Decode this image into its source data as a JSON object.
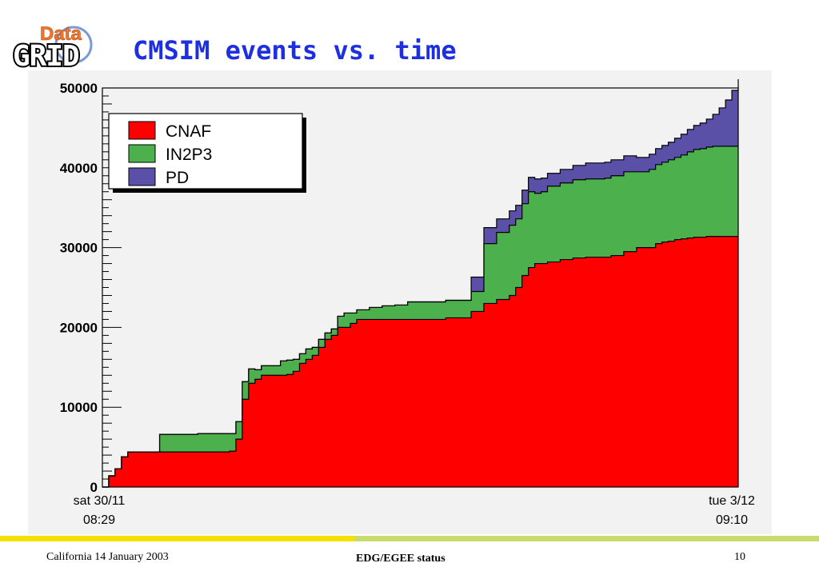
{
  "slide": {
    "title": "CMSIM events vs. time",
    "logo_top": "Data",
    "logo_bottom": "GRID"
  },
  "footer": {
    "left": "California 14 January 2003",
    "center": "EDG/EGEE status",
    "page_number": "10"
  },
  "colors": {
    "CNAF": "#ff0000",
    "IN2P3": "#4cb04c",
    "PD": "#5a50a8",
    "title": "#1d2fe0",
    "plot_background": "#f2f2f2"
  },
  "chart_data": {
    "type": "area",
    "stacked": true,
    "step": true,
    "yticks": [
      0,
      10000,
      20000,
      30000,
      40000,
      50000
    ],
    "ytick_labels": [
      "0",
      "10000",
      "20000",
      "30000",
      "40000",
      "50000"
    ],
    "ylim": [
      0,
      50000
    ],
    "xlim": [
      0,
      100
    ],
    "x_start_labels": [
      "sat 30/11",
      "08:29"
    ],
    "x_end_labels": [
      "tue 3/12",
      "09:10"
    ],
    "legend": {
      "position": "top-left",
      "entries": [
        "CNAF",
        "IN2P3",
        "PD"
      ]
    },
    "series": [
      {
        "name": "CNAF",
        "x": [
          0,
          1,
          2,
          3,
          4,
          5,
          9,
          11,
          15,
          20,
          21,
          22,
          23,
          24,
          25,
          28,
          29,
          30,
          31,
          32,
          33,
          34,
          35,
          36,
          37,
          38,
          39,
          40,
          42,
          44,
          46,
          48,
          50,
          54,
          58,
          60,
          62,
          64,
          65,
          66,
          67,
          68,
          69,
          70,
          72,
          74,
          76,
          78,
          79,
          80,
          82,
          84,
          86,
          87,
          88,
          89,
          90,
          91,
          92,
          93,
          94,
          95,
          96,
          97,
          98,
          99,
          100
        ],
        "y": [
          0,
          1400,
          2300,
          3800,
          4400,
          4400,
          4400,
          4400,
          4400,
          4500,
          6000,
          11000,
          13000,
          13500,
          14000,
          14000,
          14100,
          14500,
          15500,
          16000,
          16500,
          17500,
          18500,
          19000,
          20000,
          20000,
          20500,
          21000,
          21000,
          21000,
          21000,
          21000,
          21000,
          21200,
          22000,
          23000,
          23500,
          24000,
          25000,
          26500,
          27500,
          28000,
          28000,
          28200,
          28500,
          28700,
          28800,
          28800,
          28800,
          29000,
          29500,
          30000,
          30000,
          30500,
          30700,
          30800,
          31000,
          31100,
          31200,
          31300,
          31300,
          31400,
          31400,
          31400,
          31400,
          31400,
          31400
        ]
      },
      {
        "name": "IN2P3",
        "x": [
          0,
          1,
          2,
          3,
          4,
          5,
          9,
          11,
          15,
          20,
          21,
          22,
          23,
          24,
          25,
          28,
          29,
          30,
          31,
          32,
          33,
          34,
          35,
          36,
          37,
          38,
          39,
          40,
          42,
          44,
          46,
          48,
          50,
          54,
          58,
          60,
          62,
          64,
          65,
          66,
          67,
          68,
          69,
          70,
          72,
          74,
          76,
          78,
          79,
          80,
          82,
          84,
          86,
          87,
          88,
          89,
          90,
          91,
          92,
          93,
          94,
          95,
          96,
          97,
          98,
          99,
          100
        ],
        "y": [
          0,
          0,
          0,
          0,
          0,
          0,
          2200,
          2200,
          2300,
          2200,
          2200,
          2200,
          1800,
          1200,
          1200,
          1800,
          1800,
          1500,
          1200,
          1300,
          1000,
          1000,
          800,
          800,
          1400,
          1800,
          1300,
          1200,
          1500,
          1700,
          1800,
          2200,
          2200,
          2200,
          2500,
          7500,
          8400,
          8800,
          8600,
          9000,
          9500,
          8800,
          9000,
          9500,
          9600,
          9800,
          9800,
          9800,
          9900,
          10000,
          10000,
          9500,
          9800,
          9900,
          10000,
          10200,
          10300,
          10500,
          10800,
          11000,
          11100,
          11200,
          11300,
          11300,
          11300,
          11300,
          11300
        ]
      },
      {
        "name": "PD",
        "x": [
          0,
          1,
          2,
          3,
          4,
          5,
          9,
          11,
          15,
          20,
          21,
          22,
          23,
          24,
          25,
          28,
          29,
          30,
          31,
          32,
          33,
          34,
          35,
          36,
          37,
          38,
          39,
          40,
          42,
          44,
          46,
          48,
          50,
          54,
          58,
          60,
          62,
          64,
          65,
          66,
          67,
          68,
          69,
          70,
          72,
          74,
          76,
          78,
          79,
          80,
          82,
          84,
          86,
          87,
          88,
          89,
          90,
          91,
          92,
          93,
          94,
          95,
          96,
          97,
          98,
          99,
          100
        ],
        "y": [
          0,
          0,
          0,
          0,
          0,
          0,
          0,
          0,
          0,
          0,
          0,
          0,
          0,
          0,
          0,
          0,
          0,
          0,
          0,
          0,
          0,
          0,
          0,
          0,
          0,
          0,
          0,
          0,
          0,
          0,
          0,
          0,
          0,
          0,
          1800,
          2000,
          1700,
          1800,
          1700,
          1700,
          1800,
          1800,
          1700,
          1600,
          1700,
          1800,
          2000,
          2000,
          2000,
          2000,
          2000,
          1800,
          1900,
          2000,
          2100,
          2200,
          2400,
          2600,
          2800,
          3000,
          3200,
          3500,
          4000,
          4800,
          5800,
          7000,
          8400
        ]
      }
    ]
  }
}
